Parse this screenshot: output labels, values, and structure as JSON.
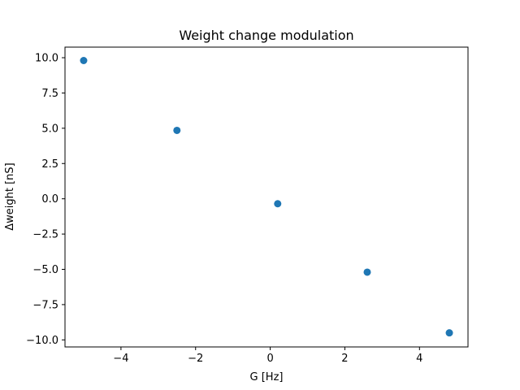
{
  "chart_data": {
    "type": "scatter",
    "title": "Weight change modulation",
    "xlabel": "G [Hz]",
    "ylabel": "Δweight [nS]",
    "xlim": [
      -5.5,
      5.3
    ],
    "ylim": [
      -10.5,
      10.75
    ],
    "xticks": [
      -4,
      -2,
      0,
      2,
      4
    ],
    "xtick_labels": [
      "−4",
      "−2",
      "0",
      "2",
      "4"
    ],
    "yticks": [
      -10,
      -7.5,
      -5,
      -2.5,
      0,
      2.5,
      5,
      7.5,
      10
    ],
    "ytick_labels": [
      "−10.0",
      "−7.5",
      "−5.0",
      "−2.5",
      "0.0",
      "2.5",
      "5.0",
      "7.5",
      "10.0"
    ],
    "grid": false,
    "series": [
      {
        "color": "#1f77b4",
        "points": [
          {
            "x": -5.0,
            "y": 9.8
          },
          {
            "x": -2.5,
            "y": 4.85
          },
          {
            "x": 0.2,
            "y": -0.35
          },
          {
            "x": 2.6,
            "y": -5.2
          },
          {
            "x": 4.8,
            "y": -9.5
          }
        ]
      }
    ]
  }
}
